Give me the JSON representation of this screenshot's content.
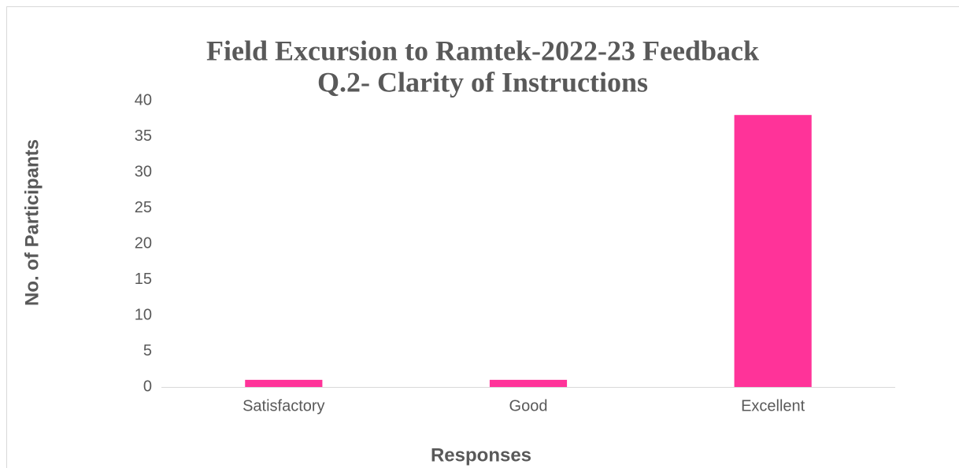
{
  "chart_data": {
    "type": "bar",
    "title": "Field Excursion to Ramtek-2022-23 Feedback",
    "subtitle": "Q.2- Clarity of Instructions",
    "x_label": "Responses",
    "y_label": "No. of Participants",
    "categories": [
      "Satisfactory",
      "Good",
      "Excellent"
    ],
    "values": [
      1,
      1,
      38
    ],
    "color": "#ff3399",
    "ylim": [
      0,
      40
    ],
    "yticks": [
      0,
      5,
      10,
      15,
      20,
      25,
      30,
      35,
      40
    ],
    "grid": false
  }
}
